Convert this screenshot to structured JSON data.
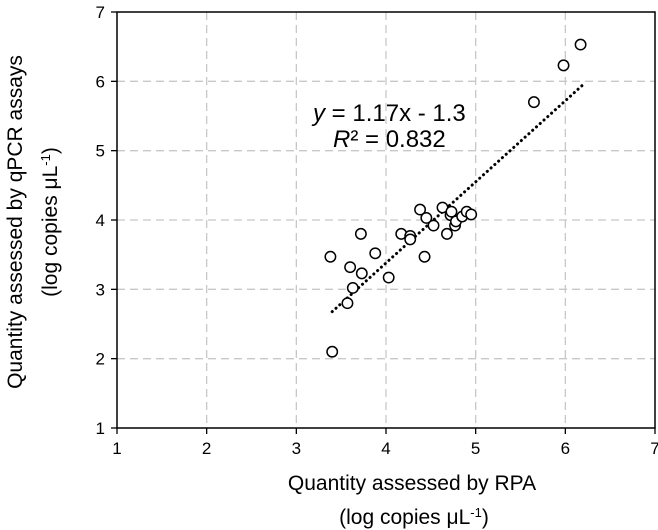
{
  "chart_data": {
    "type": "scatter",
    "title": "",
    "xlabel": {
      "line1": "Quantity assessed by RPA",
      "line2_main": "(log copies  μL",
      "line2_sup": "-1",
      "line2_end": ")"
    },
    "ylabel": {
      "line1": "Quantity assessed by qPCR assays",
      "line2_main": "(log copies μL",
      "line2_sup": "-1",
      "line2_end": ")"
    },
    "xlim": [
      1,
      7
    ],
    "ylim": [
      1,
      7
    ],
    "x_ticks": [
      "1",
      "2",
      "3",
      "4",
      "5",
      "6",
      "7"
    ],
    "y_ticks": [
      "1",
      "2",
      "3",
      "4",
      "5",
      "6",
      "7"
    ],
    "grid": true,
    "trendline": {
      "slope": 1.17,
      "intercept": -1.3,
      "x_range": [
        3.4,
        6.2
      ],
      "style": "dotted"
    },
    "equation": {
      "y_var": "y",
      "y_rest": " = 1.17x - 1.3",
      "r2_var": "R",
      "r2_rest": "² = 0.832"
    },
    "points": [
      {
        "x": 3.4,
        "y": 2.1
      },
      {
        "x": 3.38,
        "y": 3.47
      },
      {
        "x": 3.57,
        "y": 2.8
      },
      {
        "x": 3.63,
        "y": 3.02
      },
      {
        "x": 3.6,
        "y": 3.32
      },
      {
        "x": 3.73,
        "y": 3.23
      },
      {
        "x": 3.72,
        "y": 3.8
      },
      {
        "x": 3.88,
        "y": 3.52
      },
      {
        "x": 4.03,
        "y": 3.17
      },
      {
        "x": 4.17,
        "y": 3.8
      },
      {
        "x": 4.27,
        "y": 3.77
      },
      {
        "x": 4.27,
        "y": 3.72
      },
      {
        "x": 4.38,
        "y": 4.15
      },
      {
        "x": 4.43,
        "y": 3.47
      },
      {
        "x": 4.45,
        "y": 4.03
      },
      {
        "x": 4.53,
        "y": 3.92
      },
      {
        "x": 4.63,
        "y": 4.18
      },
      {
        "x": 4.68,
        "y": 3.8
      },
      {
        "x": 4.72,
        "y": 4.07
      },
      {
        "x": 4.73,
        "y": 4.12
      },
      {
        "x": 4.77,
        "y": 3.92
      },
      {
        "x": 4.78,
        "y": 3.98
      },
      {
        "x": 4.85,
        "y": 4.05
      },
      {
        "x": 4.9,
        "y": 4.12
      },
      {
        "x": 4.95,
        "y": 4.08
      },
      {
        "x": 5.65,
        "y": 5.7
      },
      {
        "x": 5.98,
        "y": 6.23
      },
      {
        "x": 6.17,
        "y": 6.53
      }
    ],
    "colors": {
      "marker_stroke": "#000000",
      "marker_fill": "#ffffff",
      "grid": "#c8c8c8",
      "axis": "#000000"
    }
  }
}
